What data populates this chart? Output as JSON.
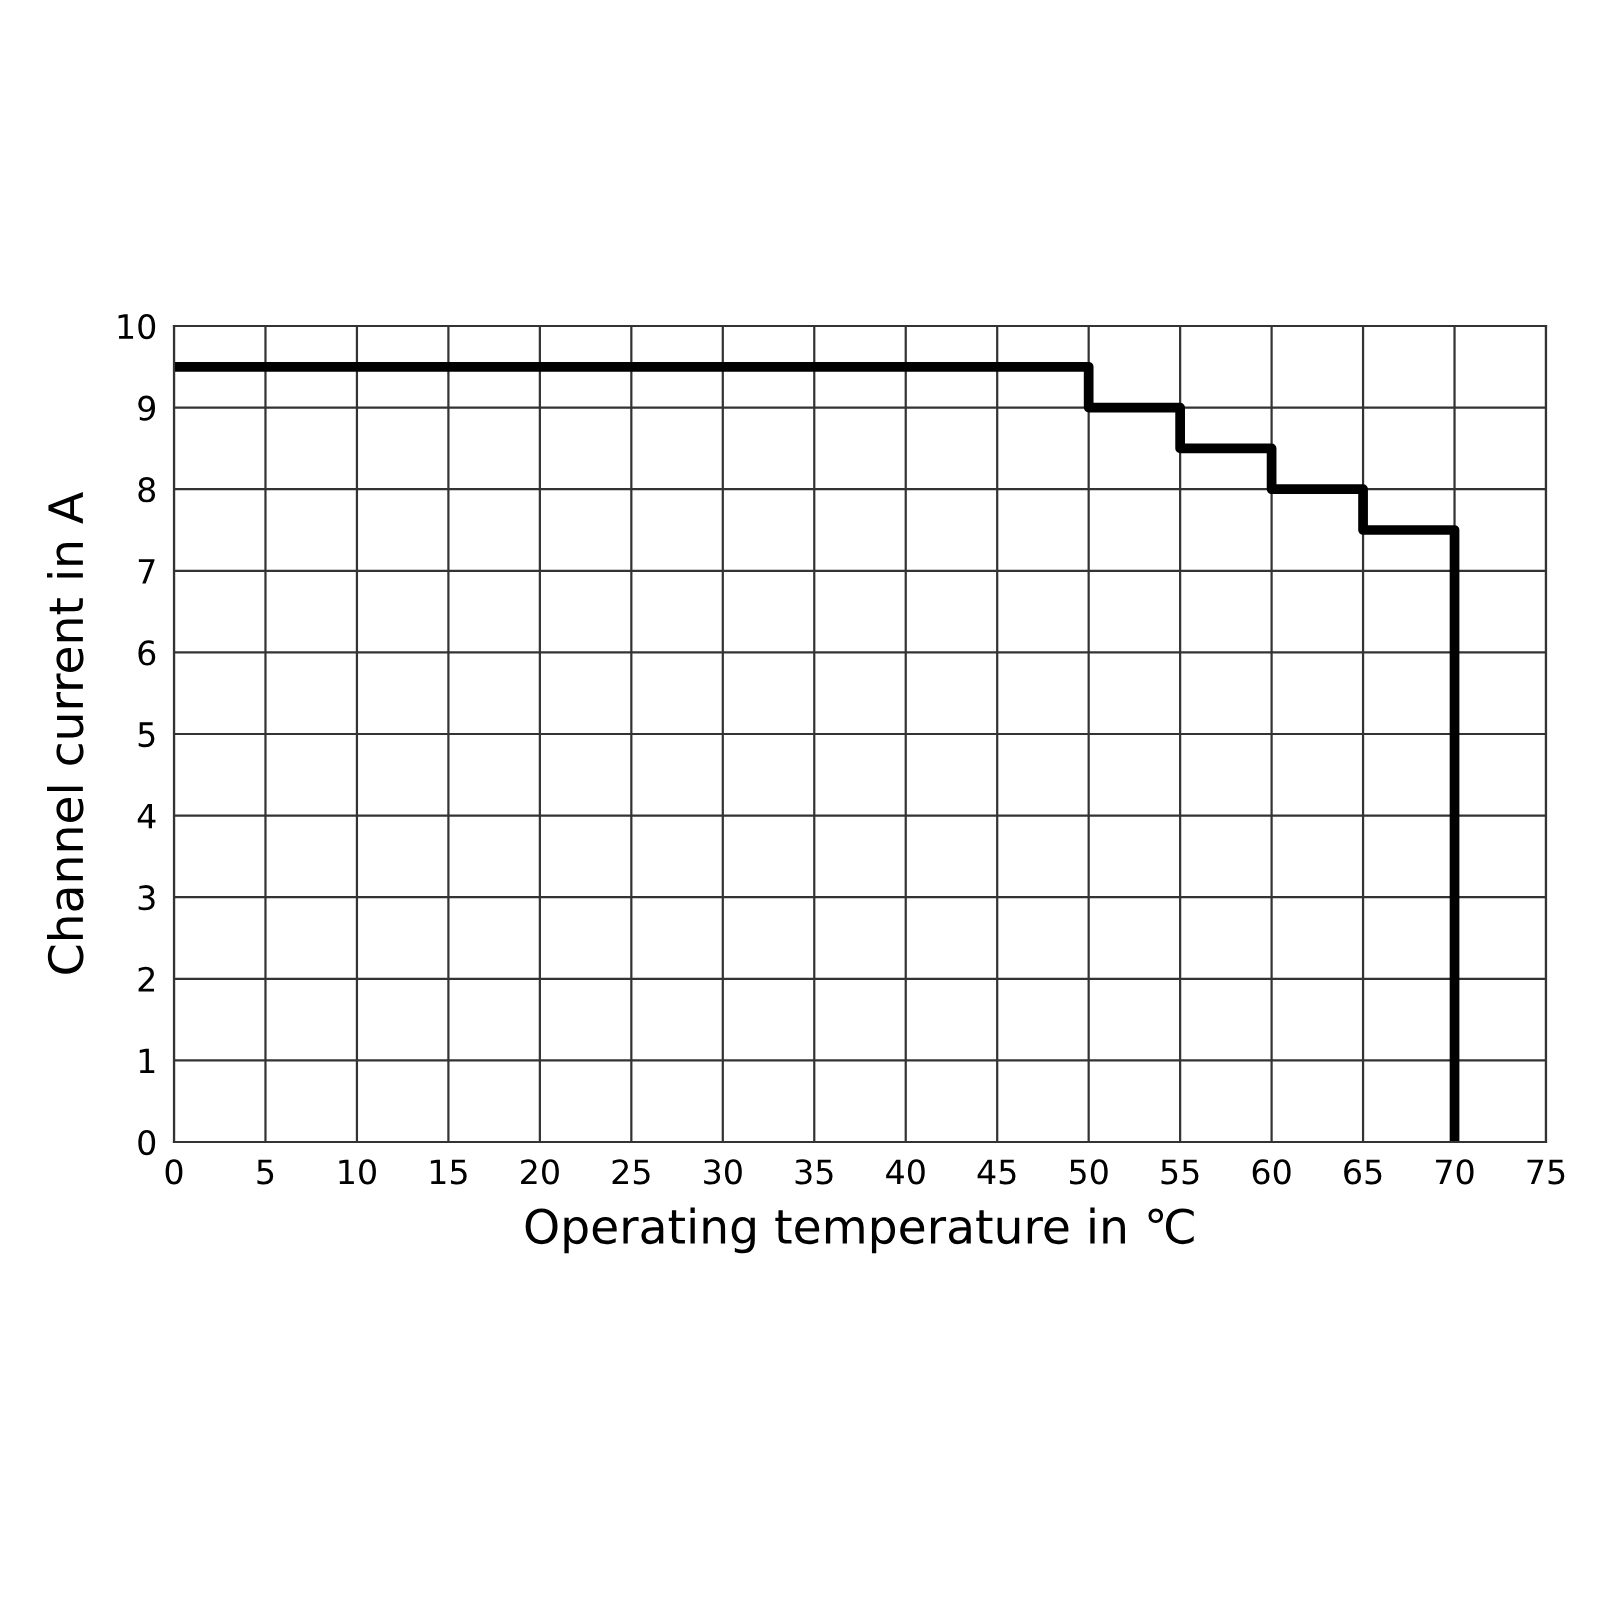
{
  "chart_data": {
    "type": "step",
    "xlabel": "Operating temperature in ℃",
    "ylabel": "Channel current in A",
    "x": [
      0,
      50,
      55,
      60,
      65,
      70
    ],
    "series": [
      {
        "color": "#000000",
        "values": [
          9.5,
          9,
          8.5,
          8,
          7.5,
          0
        ]
      }
    ],
    "xlim": [
      0,
      75
    ],
    "xticks": [
      0,
      5,
      10,
      15,
      20,
      25,
      30,
      35,
      40,
      45,
      50,
      55,
      60,
      65,
      70,
      75
    ],
    "ylim": [
      0,
      10
    ],
    "yticks": [
      0,
      1,
      2,
      3,
      4,
      5,
      6,
      7,
      8,
      9,
      10
    ],
    "grid": true,
    "legend": false,
    "marker": "none",
    "line_style": "solid"
  }
}
